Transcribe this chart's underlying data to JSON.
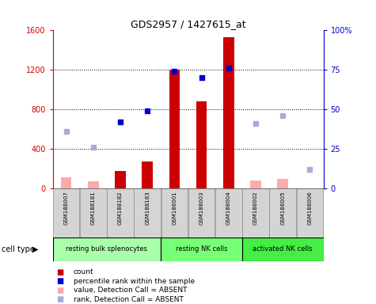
{
  "title": "GDS2957 / 1427615_at",
  "samples": [
    "GSM188007",
    "GSM188181",
    "GSM188182",
    "GSM188183",
    "GSM188001",
    "GSM188003",
    "GSM188004",
    "GSM188002",
    "GSM188005",
    "GSM188006"
  ],
  "groups": [
    {
      "name": "resting bulk splenocytes",
      "start": 0,
      "end": 4
    },
    {
      "name": "resting NK cells",
      "start": 4,
      "end": 7
    },
    {
      "name": "activated NK cells",
      "start": 7,
      "end": 10
    }
  ],
  "count_values": [
    null,
    null,
    180,
    270,
    1200,
    880,
    1530,
    null,
    null,
    null
  ],
  "count_absent": [
    110,
    70,
    null,
    null,
    null,
    null,
    null,
    80,
    100,
    null
  ],
  "percentile_values_pct": [
    null,
    null,
    42,
    49,
    74,
    70,
    76,
    null,
    null,
    null
  ],
  "percentile_absent_pct": [
    36,
    26,
    null,
    null,
    null,
    null,
    null,
    41,
    46,
    12
  ],
  "ylim_left": [
    0,
    1600
  ],
  "ylim_right": [
    0,
    100
  ],
  "yticks_left": [
    0,
    400,
    800,
    1200,
    1600
  ],
  "yticks_right": [
    0,
    25,
    50,
    75,
    100
  ],
  "left_axis_color": "#cc0000",
  "right_axis_color": "#0000cc",
  "bar_color_present": "#cc0000",
  "bar_color_absent": "#ffaaaa",
  "dot_color_present": "#0000cc",
  "dot_color_absent": "#aaaadd",
  "group_colors": [
    "#aaffaa",
    "#77ff77",
    "#44ee44"
  ],
  "legend_items": [
    {
      "label": "count",
      "color": "#cc0000"
    },
    {
      "label": "percentile rank within the sample",
      "color": "#0000cc"
    },
    {
      "label": "value, Detection Call = ABSENT",
      "color": "#ffaaaa"
    },
    {
      "label": "rank, Detection Call = ABSENT",
      "color": "#aaaadd"
    }
  ]
}
